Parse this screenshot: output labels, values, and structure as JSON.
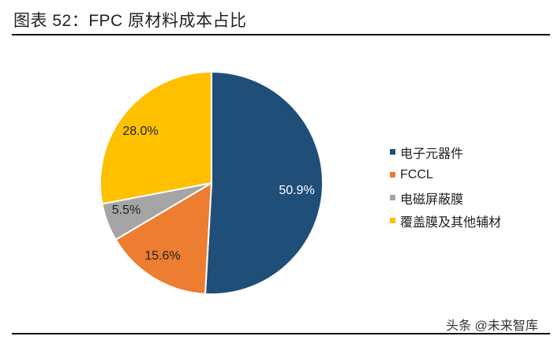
{
  "header": {
    "title": "图表 52：FPC 原材料成本占比"
  },
  "chart_data": {
    "type": "pie",
    "title": "FPC 原材料成本占比",
    "categories": [
      "电子元器件",
      "FCCL",
      "电磁屏蔽膜",
      "覆盖膜及其他辅材"
    ],
    "values": [
      50.9,
      15.6,
      5.5,
      28.0
    ],
    "labels": [
      "50.9%",
      "15.6%",
      "5.5%",
      "28.0%"
    ],
    "colors": [
      "#1F4E79",
      "#ED7D31",
      "#A5A5A5",
      "#FFC000"
    ],
    "start_angle": "top, clockwise",
    "legend_position": "right"
  },
  "legend": {
    "items": [
      {
        "label": "电子元器件",
        "color": "#1F4E79"
      },
      {
        "label": "FCCL",
        "color": "#ED7D31"
      },
      {
        "label": "电磁屏蔽膜",
        "color": "#A5A5A5"
      },
      {
        "label": "覆盖膜及其他辅材",
        "color": "#FFC000"
      }
    ]
  },
  "footer": {
    "source": "头条 @未来智库"
  }
}
